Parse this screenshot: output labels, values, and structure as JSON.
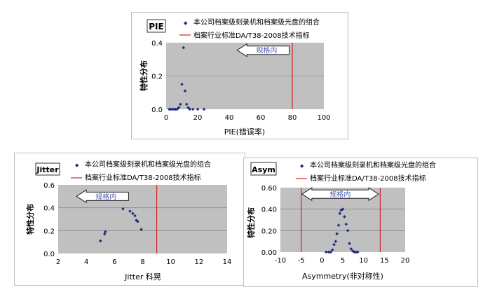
{
  "legend": {
    "series_label": "本公司档案级刻录机和档案级光盘的组合",
    "standard_label": "档案行业标准DA/T38-2008技术指标"
  },
  "arrow_label": "规格内",
  "colors": {
    "plot_bg": "#c0c0c0",
    "points": "#1f2a86",
    "spec_line": "#d22222",
    "arrow_text": "#4a5fb0"
  },
  "chart_data": [
    {
      "type": "scatter",
      "title": "PIE",
      "xlabel": "PIE(错误率)",
      "ylabel": "特性分布",
      "xlim": [
        0,
        100
      ],
      "ylim": [
        0,
        0.4
      ],
      "xticks": [
        "0",
        "20",
        "40",
        "60",
        "80",
        "100"
      ],
      "yticks": [
        "0.0",
        "0.2",
        "0.4"
      ],
      "spec_lines": [
        80
      ],
      "points": [
        [
          2,
          0
        ],
        [
          3,
          0
        ],
        [
          4,
          0
        ],
        [
          5,
          0
        ],
        [
          6,
          0
        ],
        [
          7,
          0
        ],
        [
          8,
          0.01
        ],
        [
          9,
          0.03
        ],
        [
          10,
          0.15
        ],
        [
          11,
          0.37
        ],
        [
          12,
          0.11
        ],
        [
          13,
          0.03
        ],
        [
          14,
          0.01
        ],
        [
          15,
          0
        ],
        [
          17,
          0
        ],
        [
          20,
          0
        ],
        [
          24,
          0
        ]
      ]
    },
    {
      "type": "scatter",
      "title": "Jitter",
      "xlabel": "Jitter 科晃",
      "ylabel": "特性分布",
      "xlim": [
        2,
        14
      ],
      "ylim": [
        0,
        0.6
      ],
      "xticks": [
        "2",
        "4",
        "6",
        "8",
        "10",
        "12",
        "14"
      ],
      "yticks": [
        "0.0",
        "0.2",
        "0.4",
        "0.6"
      ],
      "spec_lines": [
        9
      ],
      "points": [
        [
          5.0,
          0.11
        ],
        [
          5.3,
          0.17
        ],
        [
          5.35,
          0.19
        ],
        [
          6.6,
          0.39
        ],
        [
          7.1,
          0.37
        ],
        [
          7.3,
          0.35
        ],
        [
          7.45,
          0.33
        ],
        [
          7.55,
          0.29
        ],
        [
          7.65,
          0.28
        ],
        [
          7.9,
          0.21
        ]
      ]
    },
    {
      "type": "scatter",
      "title": "Asym",
      "xlabel": "Asymmetry(非对称性)",
      "ylabel": "特性分布",
      "xlim": [
        -10,
        20
      ],
      "ylim": [
        0,
        0.6
      ],
      "xticks": [
        "-10",
        "-5",
        "0",
        "5",
        "10",
        "15",
        "20"
      ],
      "yticks": [
        "0.00",
        "0.20",
        "0.40",
        "0.60"
      ],
      "spec_lines": [
        -5,
        14
      ],
      "points": [
        [
          1.0,
          0
        ],
        [
          1.6,
          0
        ],
        [
          2.1,
          0
        ],
        [
          2.5,
          0.02
        ],
        [
          2.9,
          0.07
        ],
        [
          3.3,
          0.1
        ],
        [
          3.6,
          0.17
        ],
        [
          4.0,
          0.25
        ],
        [
          4.3,
          0.36
        ],
        [
          4.6,
          0.39
        ],
        [
          5.0,
          0.4
        ],
        [
          5.4,
          0.33
        ],
        [
          5.8,
          0.26
        ],
        [
          6.2,
          0.2
        ],
        [
          6.6,
          0.08
        ],
        [
          7.0,
          0.03
        ],
        [
          7.4,
          0.01
        ],
        [
          7.8,
          0
        ],
        [
          8.2,
          0
        ],
        [
          8.6,
          0
        ]
      ]
    }
  ]
}
